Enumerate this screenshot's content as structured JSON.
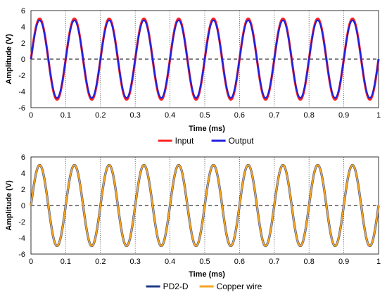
{
  "chart_data": [
    {
      "type": "line",
      "xlabel": "Time (ms)",
      "ylabel": "Amplitude (V)",
      "xlim": [
        0,
        1
      ],
      "ylim": [
        -6,
        6
      ],
      "x_ticks": [
        "0",
        "0.1",
        "0.2",
        "0.3",
        "0.4",
        "0.5",
        "0.6",
        "0.7",
        "0.8",
        "0.9",
        "1"
      ],
      "y_ticks": [
        "6",
        "4",
        "2",
        "0",
        "-2",
        "-4",
        "-6"
      ],
      "grid": "vertical dotted lines at 0.1 ms intervals; dashed zero line",
      "legend_position": "bottom-center",
      "series": [
        {
          "name": "Input",
          "color": "#ff2020",
          "amplitude": 5.0,
          "frequency_khz": 10,
          "phase_deg": 0
        },
        {
          "name": "Output",
          "color": "#2020e0",
          "amplitude": 4.8,
          "frequency_khz": 10,
          "phase_deg": 0
        }
      ]
    },
    {
      "type": "line",
      "xlabel": "Time (ms)",
      "ylabel": "Amplitude (V)",
      "xlim": [
        0,
        1
      ],
      "ylim": [
        -6,
        6
      ],
      "x_ticks": [
        "0",
        "0.1",
        "0.2",
        "0.3",
        "0.4",
        "0.5",
        "0.6",
        "0.7",
        "0.8",
        "0.9",
        "1"
      ],
      "y_ticks": [
        "6",
        "4",
        "2",
        "0",
        "-2",
        "-4",
        "-6"
      ],
      "grid": "vertical dotted lines at 0.1 ms intervals; dashed zero line",
      "legend_position": "bottom-center",
      "series": [
        {
          "name": "PD2-D",
          "color": "#1f3c88",
          "amplitude": 5.0,
          "frequency_khz": 10,
          "phase_deg": 0
        },
        {
          "name": "Copper wire",
          "color": "#f5a623",
          "amplitude": 5.0,
          "frequency_khz": 10,
          "phase_deg": 0
        }
      ]
    }
  ]
}
